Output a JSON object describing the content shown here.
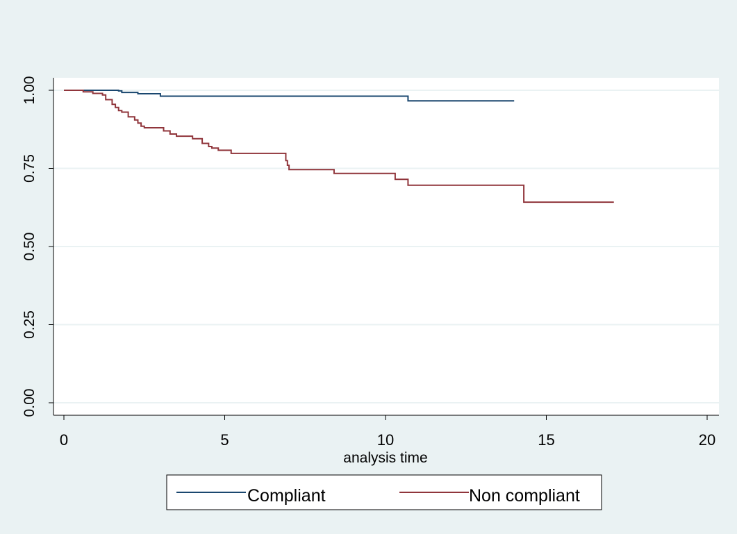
{
  "chart_data": {
    "type": "line",
    "title": "",
    "xlabel": "analysis time",
    "ylabel": "",
    "xlim": [
      0,
      20
    ],
    "ylim": [
      0,
      1
    ],
    "x_ticks": [
      "0",
      "5",
      "10",
      "15",
      "20"
    ],
    "y_ticks": [
      "0.00",
      "0.25",
      "0.50",
      "0.75",
      "1.00"
    ],
    "grid": "horizontal",
    "legend_position": "bottom",
    "colors": {
      "background": "#eaf2f3",
      "plot_area": "#ffffff",
      "gridline": "#eaf2f3"
    },
    "series": [
      {
        "name": "Compliant",
        "color": "#1a476f",
        "step": true,
        "x": [
          0,
          1.7,
          1.8,
          2.3,
          3.0,
          10.7,
          14.0
        ],
        "y": [
          1.0,
          0.998,
          0.993,
          0.989,
          0.981,
          0.966,
          0.966
        ]
      },
      {
        "name": "Non compliant",
        "color": "#90353b",
        "step": true,
        "x": [
          0,
          0.6,
          0.9,
          1.2,
          1.3,
          1.5,
          1.6,
          1.7,
          1.8,
          2.0,
          2.2,
          2.3,
          2.4,
          2.5,
          3.1,
          3.3,
          3.5,
          4.0,
          4.3,
          4.5,
          4.6,
          4.8,
          5.2,
          6.9,
          6.95,
          7.0,
          8.4,
          10.3,
          10.7,
          14.3,
          17.1
        ],
        "y": [
          1.0,
          0.995,
          0.99,
          0.985,
          0.97,
          0.955,
          0.945,
          0.935,
          0.93,
          0.915,
          0.905,
          0.895,
          0.885,
          0.88,
          0.87,
          0.86,
          0.853,
          0.845,
          0.83,
          0.82,
          0.815,
          0.808,
          0.798,
          0.775,
          0.76,
          0.746,
          0.734,
          0.715,
          0.696,
          0.642,
          0.642
        ]
      }
    ]
  }
}
